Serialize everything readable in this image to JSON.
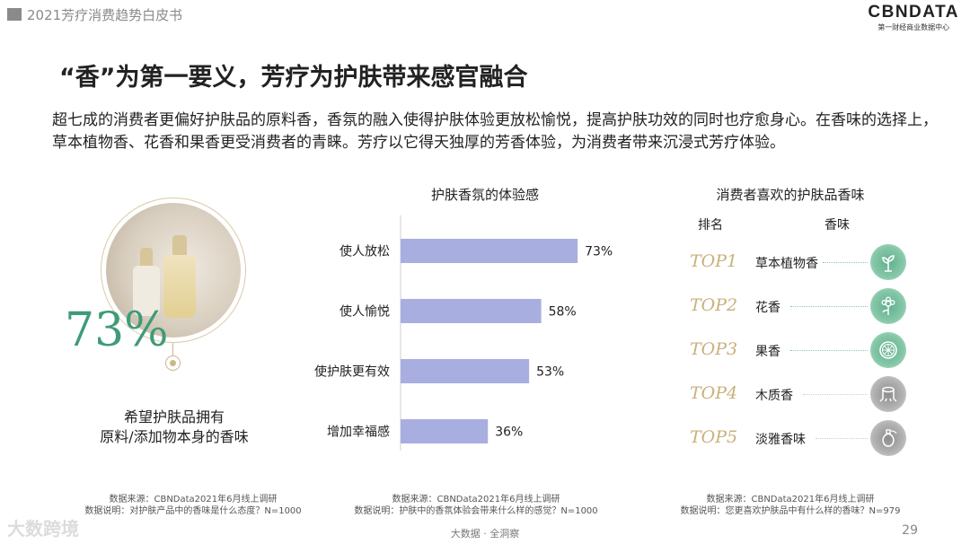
{
  "header": {
    "title": "2021芳疗消费趋势白皮书"
  },
  "logo": {
    "text": "CBNDATA",
    "subtitle": "第一财经商业数据中心"
  },
  "page_title": "“香”为第一要义，芳疗为护肤带来感官融合",
  "intro": "超七成的消费者更偏好护肤品的原料香，香氛的融入使得护肤体验更放松愉悦，提高护肤功效的同时也疗愈身心。在香味的选择上，草本植物香、花香和果香更受消费者的青睐。芳疗以它得天独厚的芳香体验，为消费者带来沉浸式芳疗体验。",
  "left_panel": {
    "percent": "73%",
    "caption_line1": "希望护肤品拥有",
    "caption_line2": "原料/添加物本身的香味",
    "source_line1": "数据来源：CBNData2021年6月线上调研",
    "source_line2": "数据说明：对护肤产品中的香味是什么态度？N=1000"
  },
  "chart_data": {
    "type": "bar",
    "orientation": "horizontal",
    "title": "护肤香氛的体验感",
    "categories": [
      "使人放松",
      "使人愉悦",
      "使护肤更有效",
      "增加幸福感"
    ],
    "values": [
      73,
      58,
      53,
      36
    ],
    "value_labels": [
      "73%",
      "58%",
      "53%",
      "36%"
    ],
    "unit": "%",
    "xlim": [
      0,
      100
    ],
    "bar_color": "#a9aee0",
    "grid": false,
    "source_line1": "数据来源：CBNData2021年6月线上调研",
    "source_line2": "数据说明：护肤中的香氛体验会带来什么样的感觉？N=1000"
  },
  "ranking": {
    "title": "消费者喜欢的护肤品香味",
    "col_rank": "排名",
    "col_scent": "香味",
    "items": [
      {
        "rank": "TOP1",
        "name": "草本植物香",
        "icon": "sprout-icon",
        "tone": "green"
      },
      {
        "rank": "TOP2",
        "name": "花香",
        "icon": "flower-icon",
        "tone": "green"
      },
      {
        "rank": "TOP3",
        "name": "果香",
        "icon": "citrus-slice-icon",
        "tone": "green"
      },
      {
        "rank": "TOP4",
        "name": "木质香",
        "icon": "tree-stump-icon",
        "tone": "gray"
      },
      {
        "rank": "TOP5",
        "name": "淡雅香味",
        "icon": "perfume-bottle-icon",
        "tone": "gray"
      }
    ],
    "source_line1": "数据来源：CBNData2021年6月线上调研",
    "source_line2": "数据说明：您更喜欢护肤品中有什么样的香味？N=979"
  },
  "footer": {
    "center": "大数据 · 全洞察",
    "page": "29",
    "watermark": "大数跨境"
  },
  "colors": {
    "accent_green": "#3f9b78",
    "gold": "#c9b07a",
    "bar": "#a9aee0"
  }
}
